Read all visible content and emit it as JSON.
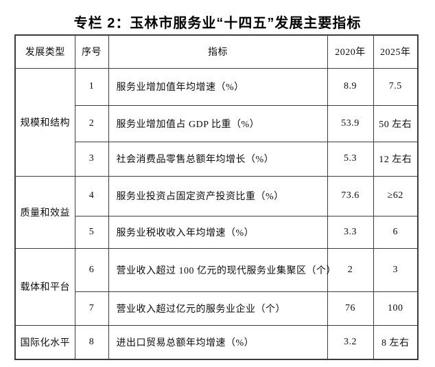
{
  "page": {
    "background": "#ffffff",
    "border_color": "#3c3c3c",
    "text_color": "#0d0d0d"
  },
  "title": "专栏 2：玉林市服务业“十四五”发展主要指标",
  "table": {
    "headers": {
      "type": "发展类型",
      "no": "序号",
      "indicator": "指标",
      "y2020": "2020年",
      "y2025": "2025年"
    },
    "groups": [
      {
        "label": "规模和结构",
        "rows": [
          {
            "no": "1",
            "indicator": "服务业增加值年均增速（%）",
            "y2020": "8.9",
            "y2025": "7.5"
          },
          {
            "no": "2",
            "indicator": "服务业增加值占 GDP 比重（%）",
            "y2020": "53.9",
            "y2025": "50 左右"
          },
          {
            "no": "3",
            "indicator": "社会消费品零售总额年均增长（%）",
            "y2020": "5.3",
            "y2025": "12 左右"
          }
        ]
      },
      {
        "label": "质量和效益",
        "rows": [
          {
            "no": "4",
            "indicator": "服务业投资占固定资产投资比重（%）",
            "y2020": "73.6",
            "y2025": "≥62"
          },
          {
            "no": "5",
            "indicator": "服务业税收收入年均增速（%）",
            "y2020": "3.3",
            "y2025": "6"
          }
        ]
      },
      {
        "label": "载体和平台",
        "rows": [
          {
            "no": "6",
            "indicator": "营业收入超过 100 亿元的现代服务业集聚区（个）",
            "y2020": "2",
            "y2025": "3"
          },
          {
            "no": "7",
            "indicator": "营业收入超过亿元的服务业企业（个）",
            "y2020": "76",
            "y2025": "100"
          }
        ]
      },
      {
        "label": "国际化水平",
        "rows": [
          {
            "no": "8",
            "indicator": "进出口贸易总额年均增速（%）",
            "y2020": "3.2",
            "y2025": "8 左右"
          }
        ]
      }
    ]
  }
}
